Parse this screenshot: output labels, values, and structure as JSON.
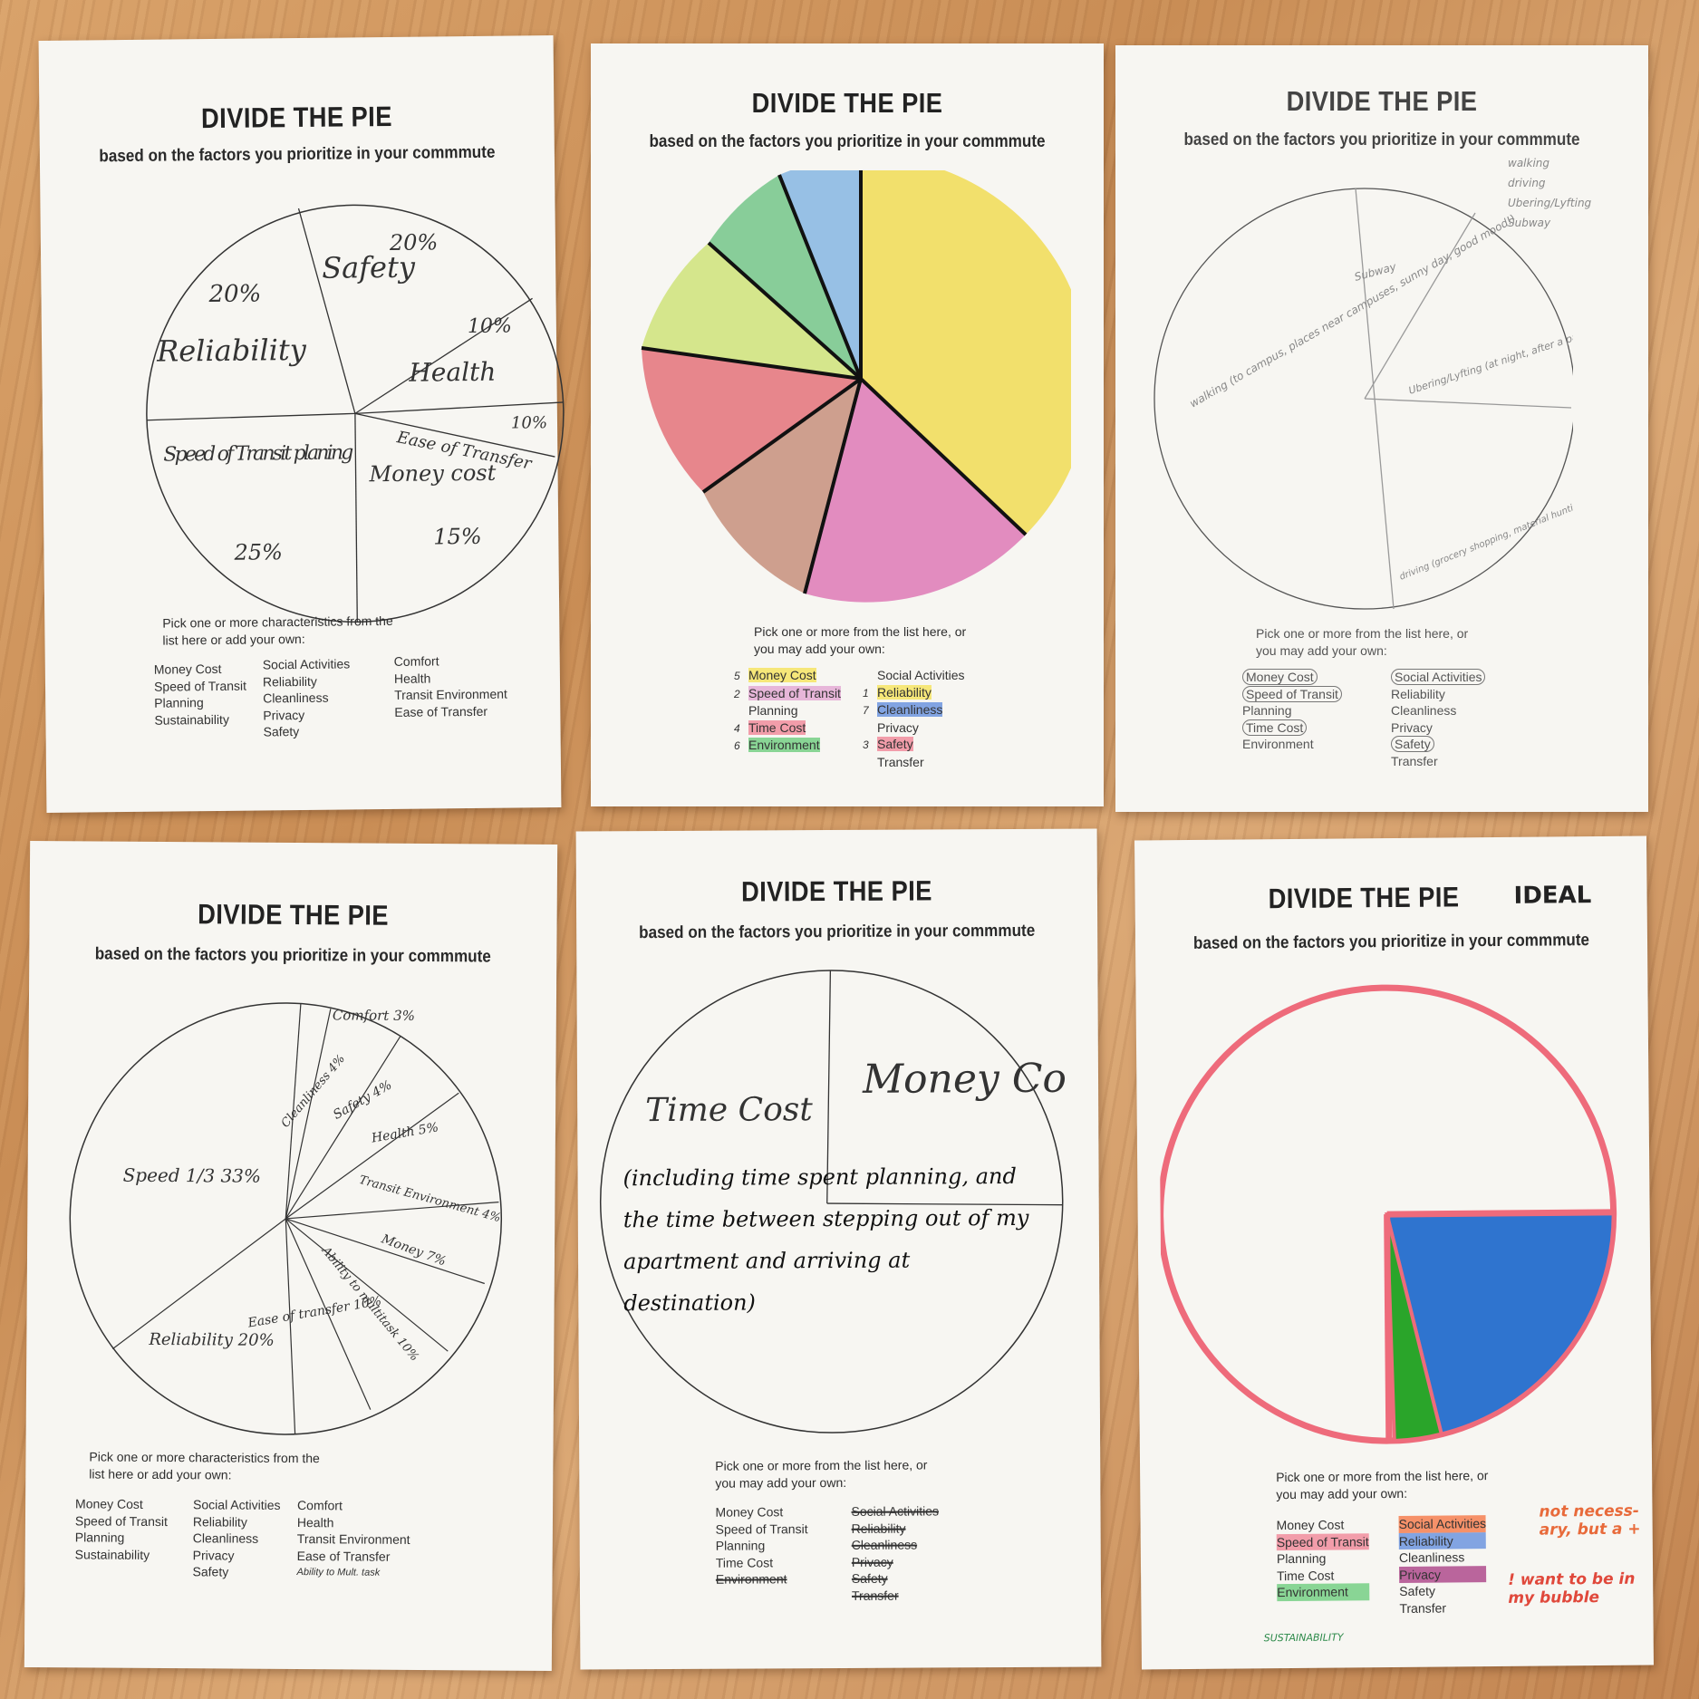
{
  "sheets": [
    {
      "title": "DIVIDE THE PIE",
      "subtitle": "based on the factors you prioritize in your commmute",
      "instructions": "Pick one or more characteristics from the list here or add your own:",
      "options_left": [
        "Money Cost",
        "Speed of Transit",
        "Planning",
        "Sustainability"
      ],
      "options_mid": [
        "Social Activities",
        "Reliability",
        "Cleanliness",
        "Privacy",
        "Safety"
      ],
      "options_right": [
        "Comfort",
        "Health",
        "Transit Environment",
        "Ease of Transfer"
      ],
      "pie_labels": [
        "Reliability",
        "20%",
        "Safety",
        "20%",
        "Health",
        "10%",
        "Ease of Transfer",
        "10%",
        "Speed of Transit planing",
        "25%",
        "Money cost",
        "15%"
      ]
    },
    {
      "title": "DIVIDE THE PIE",
      "subtitle": "based on the factors you prioritize in your commmute",
      "instructions": "Pick one or more from the list here, or you may add your own:",
      "options_left": [
        "Money Cost",
        "Speed of Transit",
        "Planning",
        "Time Cost",
        "Environment"
      ],
      "options_right": [
        "Social Activities",
        "Reliability",
        "Cleanliness",
        "Privacy",
        "Safety",
        "Transfer"
      ],
      "rank_marks": [
        "5",
        "2",
        "4",
        "6",
        "1",
        "7",
        "3"
      ]
    },
    {
      "title": "DIVIDE THE PIE",
      "subtitle": "based on the factors you prioritize in your commmute",
      "instructions": "Pick one or more from the list here, or you may add your own:",
      "options_left": [
        "Money Cost",
        "Speed of Transit",
        "Planning",
        "Time Cost",
        "Environment"
      ],
      "options_right": [
        "Social Activities",
        "Reliability",
        "Cleanliness",
        "Privacy",
        "Safety",
        "Transfer"
      ],
      "side_notes": [
        "walking",
        "driving",
        "Ubering/Lyfting",
        "Subway"
      ],
      "pie_labels": [
        "Subway",
        "walking (to campus, places near campuses, sunny day, good mood!)",
        "Ubering/Lyfting (at night, after a party, in a new city)",
        "driving (grocery shopping, material hunting, not a lot of traffic, parking spot, last minute decision)"
      ]
    },
    {
      "title": "DIVIDE THE PIE",
      "subtitle": "based on the factors you prioritize in your commmute",
      "instructions": "Pick one or more characteristics from the list here or add your own:",
      "options_left": [
        "Money Cost",
        "Speed of Transit",
        "Planning",
        "Sustainability"
      ],
      "options_mid": [
        "Social Activities",
        "Reliability",
        "Cleanliness",
        "Privacy",
        "Safety"
      ],
      "options_right": [
        "Comfort",
        "Health",
        "Transit Environment",
        "Ease of Transfer",
        "Ability to Mult. task"
      ],
      "pie_labels": [
        "Comfort 3%",
        "Cleanliness 4%",
        "Safety 4%",
        "Health 5%",
        "Transit Environment 4%",
        "Money 7%",
        "Ability to multitask 10%",
        "Ease of transfer 10%",
        "Reliability 20%",
        "Speed 1/3 33%"
      ]
    },
    {
      "title": "DIVIDE THE PIE",
      "subtitle": "based on the factors you prioritize in your commmute",
      "instructions": "Pick one or more from the list here, or you may add your own:",
      "options_left": [
        "Money Cost",
        "Speed of Transit",
        "Planning",
        "Time Cost",
        "Environment"
      ],
      "options_right": [
        "Social Activities",
        "Reliability",
        "Cleanliness",
        "Privacy",
        "Safety",
        "Transfer"
      ],
      "pie_labels": [
        "Money Cost.",
        "Time Cost",
        "(including time spent planning, and the time between stepping out of my apartment and arriving at destination)"
      ]
    },
    {
      "title": "DIVIDE THE PIE",
      "title_note": "IDEAL",
      "subtitle": "based on the factors you prioritize in your commmute",
      "instructions": "Pick one or more from the list here, or you may add your own:",
      "options_left": [
        "Money Cost",
        "Speed of Transit",
        "Planning",
        "Time Cost",
        "Environment"
      ],
      "options_right": [
        "Social Activities",
        "Reliability",
        "Cleanliness",
        "Privacy",
        "Safety",
        "Transfer"
      ],
      "notes": [
        "not necess-ary, but a +",
        "! want to be in my bubble",
        "SUSTAINABILITY"
      ]
    }
  ],
  "colors": {
    "yellow": "#f1dc55",
    "pink": "#de79b6",
    "brown": "#c78f7d",
    "red": "#e4727a",
    "lightgreen": "#cfe37a",
    "green": "#74c58a",
    "blue": "#86b6e3",
    "marker_blue": "#2f74cf",
    "marker_green": "#2aa52a",
    "marker_pink": "#ee6b7b"
  }
}
